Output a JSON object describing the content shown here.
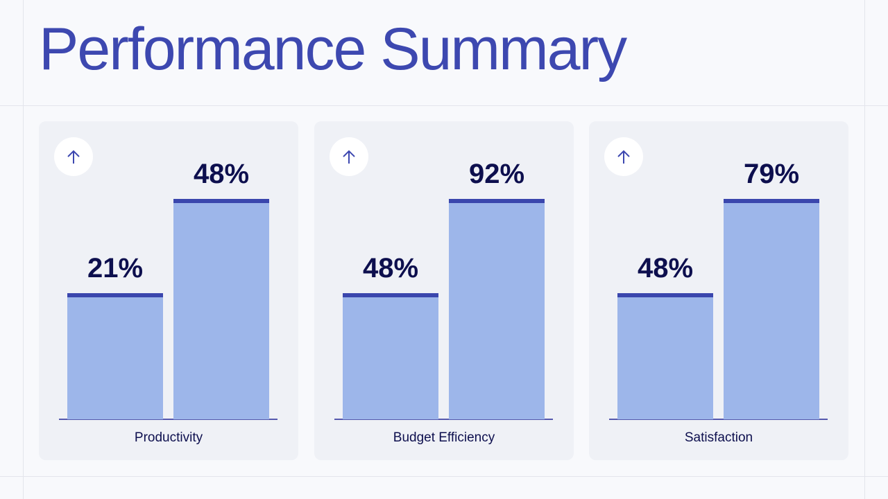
{
  "title": "Performance Summary",
  "colors": {
    "title": "#3d48b0",
    "bar": "#9db6ea",
    "bar_cap": "#3a46ad",
    "value_text": "#0d0f4e",
    "card": "#eff1f6"
  },
  "chart_data": [
    {
      "type": "bar",
      "category": "Productivity",
      "icon": "arrow-up-icon",
      "values": [
        21,
        48
      ],
      "labels": [
        "21%",
        "48%"
      ]
    },
    {
      "type": "bar",
      "category": "Budget Efficiency",
      "icon": "arrow-up-icon",
      "values": [
        48,
        92
      ],
      "labels": [
        "48%",
        "92%"
      ]
    },
    {
      "type": "bar",
      "category": "Satisfaction",
      "icon": "arrow-up-icon",
      "values": [
        48,
        79
      ],
      "labels": [
        "48%",
        "79%"
      ]
    }
  ]
}
